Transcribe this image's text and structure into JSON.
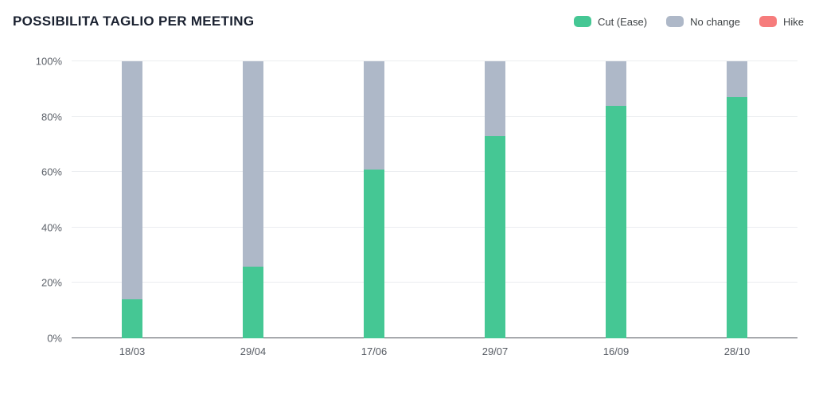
{
  "page": {
    "title": "POSSIBILITA TAGLIO PER MEETING"
  },
  "chart_data": {
    "type": "bar",
    "stacked": true,
    "title": "POSSIBILITA TAGLIO PER MEETING",
    "categories": [
      "18/03",
      "29/04",
      "17/06",
      "29/07",
      "16/09",
      "28/10"
    ],
    "series": [
      {
        "name": "Cut (Ease)",
        "color": "#45c794",
        "values": [
          14,
          26,
          61,
          73,
          84,
          87
        ]
      },
      {
        "name": "No change",
        "color": "#aeb8c8",
        "values": [
          86,
          74,
          39,
          27,
          16,
          13
        ]
      },
      {
        "name": "Hike",
        "color": "#f67c7c",
        "values": [
          0,
          0,
          0,
          0,
          0,
          0
        ]
      }
    ],
    "xlabel": "",
    "ylabel": "",
    "ylim": [
      0,
      100
    ],
    "yticks": [
      0,
      20,
      40,
      60,
      80,
      100
    ],
    "ytick_suffix": "%",
    "grid": true,
    "legend_position": "top-right",
    "colors": {
      "gridline": "#ebedf0",
      "axis_line": "#4d525a",
      "tick_text": "#5c6169",
      "title_text": "#1a2130",
      "legend_text": "#3c4043",
      "background": "#ffffff"
    }
  }
}
